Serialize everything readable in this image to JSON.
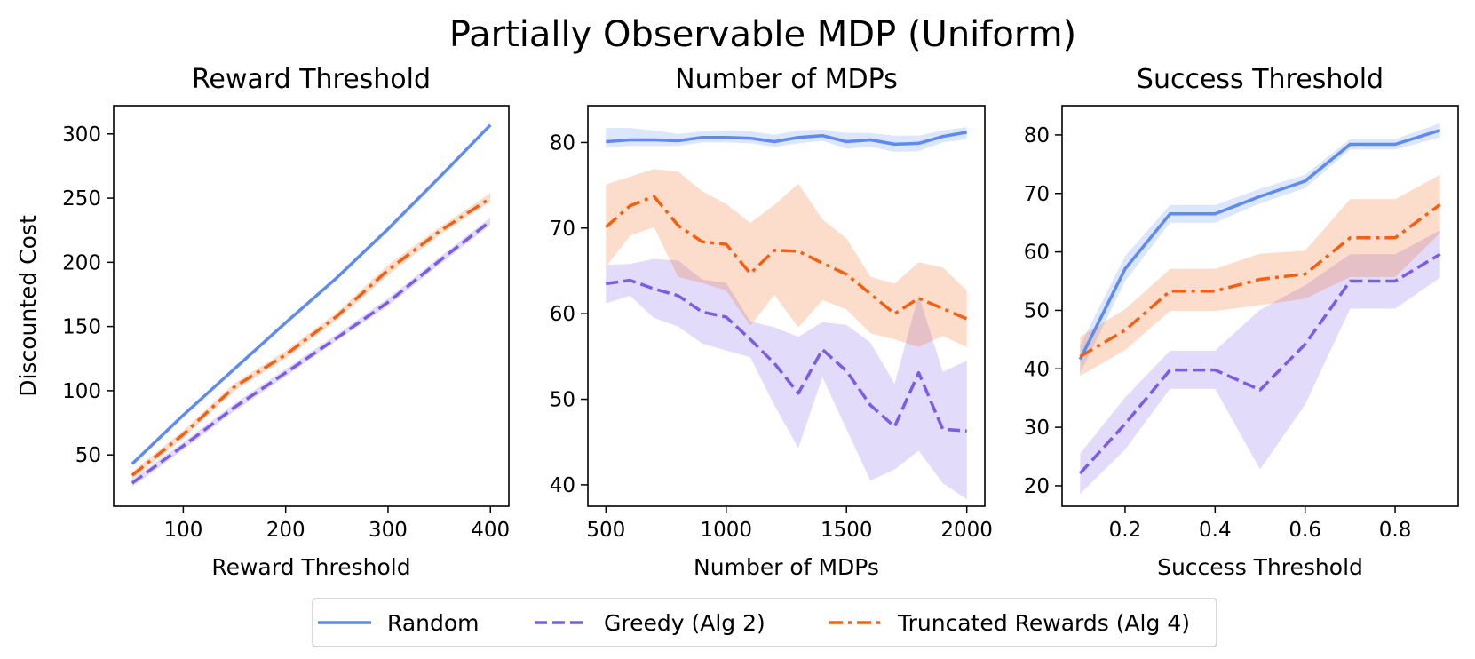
{
  "figure": {
    "title": "Partially Observable MDP (Uniform)"
  },
  "legend": {
    "placement": "bottom-center",
    "entries": [
      {
        "label": "Random",
        "color": "#5f8bf0",
        "style": "solid"
      },
      {
        "label": "Greedy (Alg 2)",
        "color": "#7b5ce6",
        "style": "dashed"
      },
      {
        "label": "Truncated Rewards (Alg 4)",
        "color": "#f36011",
        "style": "dashdot"
      }
    ]
  },
  "chart_data": [
    {
      "type": "line",
      "title": "Reward Threshold",
      "xlabel": "Reward Threshold",
      "ylabel": "Discounted Cost",
      "xlim": [
        32,
        418
      ],
      "ylim": [
        10,
        322
      ],
      "xticks": [
        100,
        200,
        300,
        400
      ],
      "xtick_labels": [
        "100",
        "200",
        "300",
        "400"
      ],
      "yticks": [
        50,
        100,
        150,
        200,
        250,
        300
      ],
      "ytick_labels": [
        "50",
        "100",
        "150",
        "200",
        "250",
        "300"
      ],
      "series": [
        {
          "name": "Random",
          "x": [
            50,
            100,
            150,
            200,
            250,
            300,
            350,
            400
          ],
          "values": [
            43,
            81,
            117,
            153,
            188,
            226,
            266,
            307
          ],
          "lower": [
            42,
            80,
            116,
            152,
            187,
            225,
            265,
            306
          ],
          "upper": [
            44,
            82,
            118,
            154,
            189,
            227,
            267,
            308
          ]
        },
        {
          "name": "Greedy (Alg 2)",
          "x": [
            50,
            100,
            150,
            200,
            250,
            300,
            350,
            400
          ],
          "values": [
            28,
            57,
            87,
            114,
            141,
            169,
            201,
            232
          ],
          "lower": [
            25,
            54,
            84,
            111,
            139,
            166,
            198,
            229
          ],
          "upper": [
            31,
            60,
            90,
            117,
            144,
            172,
            204,
            235
          ]
        },
        {
          "name": "Truncated Rewards (Alg 4)",
          "x": [
            50,
            100,
            150,
            200,
            250,
            300,
            350,
            400
          ],
          "values": [
            34,
            66,
            103,
            128,
            158,
            194,
            224,
            250
          ],
          "lower": [
            31,
            63,
            100,
            125,
            155,
            190,
            221,
            247
          ],
          "upper": [
            37,
            69,
            106,
            131,
            161,
            198,
            227,
            254
          ]
        }
      ]
    },
    {
      "type": "line",
      "title": "Number of MDPs",
      "xlabel": "Number of MDPs",
      "ylabel": "",
      "xlim": [
        425,
        2075
      ],
      "ylim": [
        37.5,
        84.3
      ],
      "xticks": [
        500,
        1000,
        1500,
        2000
      ],
      "xtick_labels": [
        "500",
        "1000",
        "1500",
        "2000"
      ],
      "yticks": [
        40,
        50,
        60,
        70,
        80
      ],
      "ytick_labels": [
        "40",
        "50",
        "60",
        "70",
        "80"
      ],
      "series": [
        {
          "name": "Random",
          "x": [
            500,
            600,
            700,
            800,
            900,
            1000,
            1100,
            1200,
            1300,
            1400,
            1500,
            1600,
            1700,
            1800,
            1900,
            2000
          ],
          "values": [
            80.1,
            80.3,
            80.3,
            80.2,
            80.6,
            80.6,
            80.5,
            80.1,
            80.6,
            80.8,
            80.1,
            80.3,
            79.8,
            79.9,
            80.7,
            81.2
          ],
          "lower": [
            79.4,
            79.6,
            79.6,
            79.6,
            80.0,
            80.0,
            79.9,
            79.5,
            79.9,
            80.2,
            79.3,
            79.5,
            78.9,
            79.0,
            80.0,
            80.4
          ],
          "upper": [
            81.7,
            81.7,
            81.4,
            81.0,
            81.3,
            81.4,
            81.3,
            80.9,
            81.4,
            81.5,
            81.1,
            81.1,
            80.8,
            80.8,
            81.4,
            81.8
          ]
        },
        {
          "name": "Greedy (Alg 2)",
          "x": [
            500,
            600,
            700,
            800,
            900,
            1000,
            1100,
            1200,
            1300,
            1400,
            1500,
            1600,
            1700,
            1800,
            1900,
            2000
          ],
          "values": [
            63.5,
            63.9,
            62.9,
            62.1,
            60.2,
            59.6,
            57.0,
            54.2,
            50.7,
            55.8,
            53.3,
            49.3,
            46.8,
            53.1,
            46.5,
            46.3
          ],
          "lower": [
            61.2,
            62.1,
            59.5,
            58.5,
            56.5,
            55.7,
            54.9,
            49.3,
            44.3,
            52.6,
            46.5,
            40.5,
            41.8,
            44.0,
            40.2,
            38.3
          ],
          "upper": [
            65.7,
            65.8,
            66.4,
            66.2,
            64.0,
            63.6,
            59.1,
            58.4,
            57.3,
            59.0,
            58.7,
            56.6,
            51.8,
            62.2,
            53.2,
            54.5
          ]
        },
        {
          "name": "Truncated Rewards (Alg 4)",
          "x": [
            500,
            600,
            700,
            800,
            900,
            1000,
            1100,
            1200,
            1300,
            1400,
            1500,
            1600,
            1700,
            1800,
            1900,
            2000
          ],
          "values": [
            70.1,
            72.6,
            73.7,
            70.3,
            68.4,
            68.1,
            64.7,
            67.4,
            67.3,
            65.9,
            64.6,
            62.3,
            60.0,
            61.8,
            60.6,
            59.4
          ],
          "lower": [
            65.5,
            69.1,
            70.1,
            64.3,
            63.6,
            62.7,
            58.6,
            62.2,
            58.4,
            61.6,
            60.5,
            57.7,
            57.0,
            56.1,
            57.4,
            56.1
          ],
          "upper": [
            75.1,
            76.0,
            76.9,
            76.6,
            74.3,
            72.8,
            70.6,
            72.7,
            75.2,
            71.0,
            68.8,
            64.3,
            63.5,
            66.0,
            65.4,
            62.7
          ]
        }
      ]
    },
    {
      "type": "line",
      "title": "Success Threshold",
      "xlabel": "Success Threshold",
      "ylabel": "",
      "xlim": [
        0.06,
        0.94
      ],
      "ylim": [
        16.5,
        85
      ],
      "xticks": [
        0.2,
        0.4,
        0.6,
        0.8
      ],
      "xtick_labels": [
        "0.2",
        "0.4",
        "0.6",
        "0.8"
      ],
      "yticks": [
        20,
        30,
        40,
        50,
        60,
        70,
        80
      ],
      "ytick_labels": [
        "20",
        "30",
        "40",
        "50",
        "60",
        "70",
        "80"
      ],
      "series": [
        {
          "name": "Random",
          "x": [
            0.1,
            0.2,
            0.3,
            0.4,
            0.5,
            0.6,
            0.7,
            0.8,
            0.9
          ],
          "values": [
            41.6,
            57.1,
            66.5,
            66.5,
            69.5,
            72.1,
            78.4,
            78.4,
            80.8
          ],
          "lower": [
            39.2,
            55.0,
            65.0,
            65.0,
            68.3,
            70.9,
            77.5,
            77.5,
            79.6
          ],
          "upper": [
            44.0,
            59.3,
            68.0,
            68.0,
            70.8,
            73.2,
            79.3,
            79.3,
            82.0
          ]
        },
        {
          "name": "Greedy (Alg 2)",
          "x": [
            0.1,
            0.2,
            0.3,
            0.4,
            0.5,
            0.6,
            0.7,
            0.8,
            0.9
          ],
          "values": [
            22.1,
            30.6,
            39.8,
            39.8,
            36.4,
            44.2,
            55.0,
            55.0,
            59.6
          ],
          "lower": [
            18.6,
            26.2,
            36.6,
            36.6,
            22.8,
            33.9,
            50.3,
            50.3,
            55.6
          ],
          "upper": [
            25.5,
            35.1,
            43.1,
            43.1,
            50.1,
            54.3,
            59.6,
            59.6,
            63.7
          ]
        },
        {
          "name": "Truncated Rewards (Alg 4)",
          "x": [
            0.1,
            0.2,
            0.3,
            0.4,
            0.5,
            0.6,
            0.7,
            0.8,
            0.9
          ],
          "values": [
            42.1,
            46.6,
            53.3,
            53.3,
            55.3,
            56.2,
            62.4,
            62.4,
            68.1
          ],
          "lower": [
            38.8,
            43.2,
            49.9,
            49.9,
            50.9,
            52.0,
            55.7,
            55.7,
            63.2
          ],
          "upper": [
            45.5,
            50.2,
            57.1,
            57.1,
            59.7,
            60.2,
            69.0,
            69.0,
            73.2
          ]
        }
      ]
    }
  ]
}
